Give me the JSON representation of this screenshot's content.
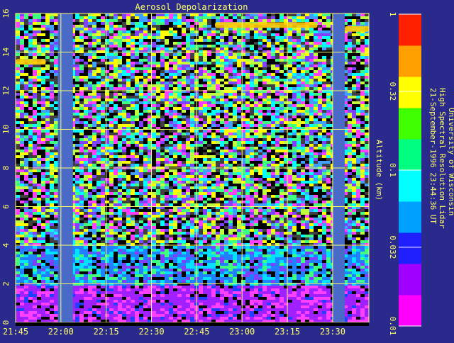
{
  "chart_data": {
    "type": "heatmap",
    "title": "Aerosol Depolarization",
    "ylabel": "Altitude (km)",
    "xlabel": "",
    "x_ticks": [
      "21:45",
      "22:00",
      "22:15",
      "22:30",
      "22:45",
      "23:00",
      "23:15",
      "23:30"
    ],
    "y_ticks": [
      0,
      2,
      4,
      6,
      8,
      10,
      12,
      14,
      16
    ],
    "ylim": [
      0,
      16
    ],
    "xlim": [
      "21:45",
      "23:42"
    ],
    "grid": true,
    "colorbar": {
      "scale": "log",
      "range": [
        0.01,
        1
      ],
      "ticks": [
        "1",
        "0.32",
        "0.1",
        "0.032",
        "0.01"
      ],
      "colors": [
        "#ff00ff",
        "#a000ff",
        "#2020ff",
        "#00a0ff",
        "#00ffff",
        "#00ff80",
        "#40ff00",
        "#ffff00",
        "#ffa000",
        "#ff2000"
      ]
    },
    "data_gaps": [
      {
        "start": "21:59",
        "end": "22:04"
      },
      {
        "start": "23:30",
        "end": "23:34"
      }
    ],
    "features": [
      {
        "altitude_km": 13.5,
        "start": "21:45",
        "end": "21:55",
        "depolarization": 0.32
      },
      {
        "altitude_km": 15.4,
        "start": "22:51",
        "end": "23:25",
        "depolarization": 0.32
      },
      {
        "altitude_km": 15.2,
        "start": "23:34",
        "end": "23:42",
        "depolarization": 0.32
      }
    ],
    "source": [
      "University of Wisconsin",
      "High Spectral Resolution Lidar",
      "21-September-1996 23:44:36 UT"
    ]
  }
}
